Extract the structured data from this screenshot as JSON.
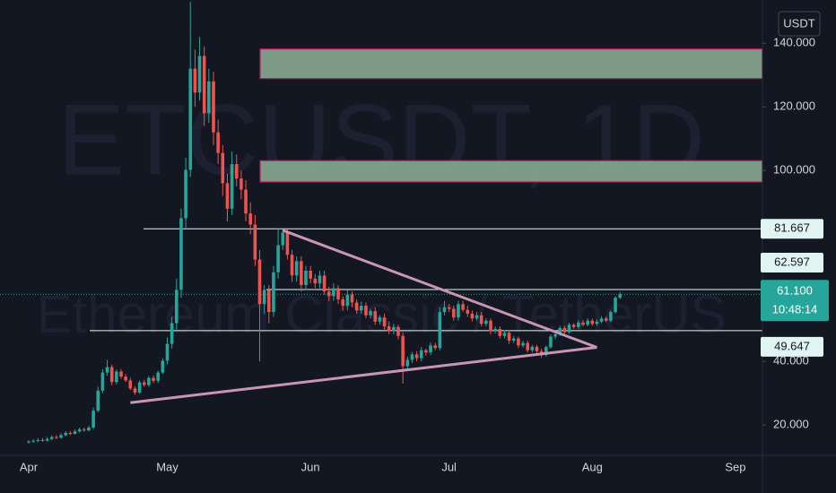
{
  "chart_data": {
    "type": "candlestick",
    "title": "ETCUSDT, 1D",
    "subtitle": "Ethereum Classic / TetherUS",
    "currency": "USDT",
    "categories": [
      "Apr",
      null,
      null,
      null,
      null,
      null,
      null,
      null,
      null,
      null,
      null,
      null,
      null,
      null,
      null,
      null,
      null,
      null,
      null,
      null,
      null,
      null,
      null,
      null,
      null,
      null,
      null,
      null,
      null,
      null,
      "May",
      null,
      null,
      null,
      null,
      null,
      null,
      null,
      null,
      null,
      null,
      null,
      null,
      null,
      null,
      null,
      null,
      null,
      null,
      null,
      null,
      null,
      null,
      null,
      null,
      null,
      null,
      null,
      null,
      null,
      null,
      "Jun",
      null,
      null,
      null,
      null,
      null,
      null,
      null,
      null,
      null,
      null,
      null,
      null,
      null,
      null,
      null,
      null,
      null,
      null,
      null,
      null,
      null,
      null,
      null,
      null,
      null,
      null,
      null,
      null,
      null,
      "Jul",
      null,
      null,
      null,
      null,
      null,
      null,
      null,
      null,
      null,
      null,
      null,
      null,
      null,
      null,
      null,
      null,
      null,
      null,
      null,
      null,
      null,
      null,
      null,
      null,
      null,
      null,
      null,
      null,
      null,
      null,
      "Aug",
      null,
      null,
      null,
      null,
      null,
      null,
      null,
      null,
      null,
      null,
      null,
      null,
      null,
      null,
      null,
      null,
      null,
      null,
      null,
      null,
      null,
      null,
      null,
      null,
      null,
      null,
      null,
      null,
      null,
      null,
      "Sep"
    ],
    "open": [
      14.5,
      14.8,
      15.0,
      15.3,
      15.1,
      15.6,
      16.2,
      16.0,
      16.8,
      17.5,
      17.2,
      18.0,
      18.6,
      18.3,
      19.2,
      24.5,
      30.8,
      36.5,
      38.2,
      33.5,
      36.8,
      35.2,
      34.0,
      31.5,
      30.2,
      33.4,
      32.6,
      34.8,
      33.9,
      36.5,
      40.2,
      45.5,
      52.0,
      62.5,
      85.0,
      100.2,
      132.0,
      124.5,
      136.0,
      118.0,
      128.0,
      112.0,
      105.5,
      96.0,
      88.0,
      102.0,
      97.5,
      94.0,
      86.5,
      83.0,
      72.0,
      58.0,
      62.5,
      55.5,
      68.0,
      76.5,
      80.5,
      73.5,
      67.0,
      71.5,
      64.0,
      68.5,
      66.0,
      64.5,
      67.0,
      62.0,
      60.5,
      63.0,
      59.5,
      57.5,
      61.0,
      58.5,
      56.0,
      57.5,
      54.5,
      55.8,
      52.5,
      53.8,
      51.0,
      49.5,
      50.8,
      48.0,
      38.5,
      40.5,
      42.2,
      41.0,
      43.5,
      42.8,
      45.0,
      44.2,
      55.5,
      57.0,
      56.5,
      53.8,
      58.0,
      56.2,
      55.0,
      53.5,
      54.5,
      51.8,
      52.8,
      49.5,
      50.2,
      48.0,
      49.0,
      46.5,
      47.2,
      45.0,
      45.8,
      43.5,
      44.6,
      43.2,
      42.0,
      44.5,
      47.8,
      48.5,
      50.5,
      49.2,
      51.5,
      50.8,
      52.2,
      51.5,
      52.8,
      51.8,
      52.5,
      53.5,
      52.8,
      55.5,
      60.0,
      null,
      null,
      null,
      null,
      null,
      null,
      null,
      null,
      null,
      null,
      null,
      null,
      null,
      null,
      null,
      null,
      null,
      null,
      null,
      null,
      null,
      null,
      null,
      null,
      null
    ],
    "high": [
      15.3,
      15.6,
      15.9,
      15.9,
      16.2,
      16.8,
      16.8,
      17.4,
      18.1,
      18.1,
      18.6,
      19.2,
      19.2,
      19.8,
      25.5,
      32.0,
      37.5,
      40.5,
      39.0,
      37.5,
      37.6,
      36.0,
      34.8,
      32.2,
      34.0,
      34.2,
      35.4,
      35.6,
      37.1,
      41.0,
      47.5,
      54.0,
      66.0,
      88.0,
      104.0,
      153.0,
      138.0,
      142.0,
      139.0,
      132.0,
      131.0,
      116.0,
      108.0,
      99.0,
      106.0,
      105.0,
      100.0,
      97.0,
      90.0,
      86.0,
      75.0,
      64.0,
      64.0,
      70.0,
      81.7,
      82.0,
      81.5,
      75.0,
      73.0,
      73.0,
      70.0,
      70.0,
      67.5,
      68.5,
      68.5,
      63.5,
      64.5,
      64.0,
      60.5,
      62.5,
      62.0,
      59.5,
      58.8,
      58.5,
      56.5,
      57.0,
      54.5,
      55.0,
      52.5,
      51.8,
      51.5,
      49.0,
      41.5,
      43.0,
      43.2,
      44.5,
      44.0,
      46.0,
      45.8,
      57.0,
      59.0,
      58.0,
      57.5,
      59.0,
      59.0,
      57.5,
      56.0,
      55.5,
      55.5,
      53.5,
      53.5,
      51.0,
      51.0,
      49.8,
      49.8,
      48.0,
      47.8,
      46.5,
      46.5,
      45.2,
      45.2,
      44.0,
      45.0,
      48.5,
      49.0,
      51.2,
      51.2,
      52.2,
      52.0,
      53.0,
      53.0,
      53.5,
      53.5,
      53.2,
      54.2,
      54.2,
      56.0,
      60.5,
      61.8,
      null,
      null,
      null,
      null,
      null,
      null,
      null,
      null,
      null,
      null,
      null,
      null,
      null,
      null,
      null,
      null,
      null,
      null,
      null,
      null,
      null,
      null,
      null,
      null,
      null
    ],
    "low": [
      14.2,
      14.4,
      14.6,
      14.7,
      14.8,
      15.2,
      15.6,
      15.7,
      16.4,
      16.8,
      17.0,
      17.6,
      17.9,
      18.0,
      18.8,
      24.0,
      30.0,
      35.5,
      32.5,
      32.8,
      34.5,
      33.5,
      31.0,
      29.5,
      29.8,
      32.0,
      32.0,
      33.2,
      33.2,
      36.0,
      39.0,
      44.0,
      50.0,
      60.0,
      82.0,
      98.0,
      120.0,
      122.0,
      114.0,
      115.0,
      108.0,
      102.0,
      92.0,
      84.0,
      86.0,
      95.0,
      91.0,
      84.0,
      80.0,
      70.0,
      40.0,
      55.0,
      52.0,
      54.0,
      66.0,
      75.0,
      72.0,
      65.0,
      65.0,
      62.0,
      62.5,
      64.5,
      63.0,
      63.0,
      61.0,
      59.0,
      59.0,
      58.0,
      56.0,
      56.0,
      57.0,
      55.0,
      55.0,
      53.5,
      53.5,
      51.5,
      51.5,
      50.0,
      48.5,
      48.5,
      47.0,
      33.0,
      37.5,
      39.5,
      40.0,
      40.0,
      41.8,
      42.0,
      43.5,
      43.5,
      54.5,
      55.5,
      52.8,
      52.8,
      55.5,
      54.0,
      52.5,
      52.8,
      51.0,
      51.0,
      48.5,
      48.8,
      47.2,
      47.2,
      45.5,
      45.8,
      44.2,
      44.3,
      42.8,
      42.8,
      42.5,
      41.2,
      41.5,
      44.0,
      47.0,
      48.0,
      48.5,
      48.7,
      50.2,
      50.2,
      51.0,
      51.0,
      51.2,
      51.2,
      52.0,
      52.3,
      52.3,
      55.0,
      59.5,
      null,
      null,
      null,
      null,
      null,
      null,
      null,
      null,
      null,
      null,
      null,
      null,
      null,
      null,
      null,
      null,
      null,
      null,
      null,
      null,
      null,
      null,
      null,
      null,
      null
    ],
    "close": [
      14.8,
      15.0,
      15.3,
      15.1,
      15.6,
      16.2,
      16.0,
      16.8,
      17.5,
      17.2,
      18.0,
      18.6,
      18.3,
      19.2,
      24.5,
      30.8,
      36.5,
      38.2,
      33.5,
      36.8,
      35.2,
      34.0,
      31.5,
      30.2,
      33.4,
      32.6,
      34.8,
      33.9,
      36.5,
      40.2,
      45.5,
      52.0,
      62.5,
      85.0,
      100.2,
      132.0,
      124.5,
      136.0,
      118.0,
      128.0,
      112.0,
      105.5,
      96.0,
      88.0,
      102.0,
      97.5,
      94.0,
      86.5,
      83.0,
      72.0,
      58.0,
      62.5,
      55.5,
      68.0,
      76.5,
      80.5,
      73.5,
      67.0,
      71.5,
      64.0,
      68.5,
      66.0,
      64.5,
      67.0,
      62.0,
      60.5,
      63.0,
      59.5,
      57.5,
      61.0,
      58.5,
      56.0,
      57.5,
      54.5,
      55.8,
      52.5,
      53.8,
      51.0,
      49.5,
      50.8,
      48.0,
      38.5,
      40.5,
      42.2,
      41.0,
      43.5,
      42.8,
      45.0,
      44.2,
      55.5,
      57.0,
      56.5,
      53.8,
      58.0,
      56.2,
      55.0,
      53.5,
      54.5,
      51.8,
      52.8,
      49.5,
      50.2,
      48.0,
      49.0,
      46.5,
      47.2,
      45.0,
      45.8,
      43.5,
      44.6,
      43.2,
      42.0,
      44.5,
      47.8,
      48.5,
      50.5,
      49.2,
      51.5,
      50.8,
      52.2,
      51.5,
      52.8,
      51.8,
      52.5,
      53.5,
      52.8,
      55.5,
      60.0,
      61.1,
      null,
      null,
      null,
      null,
      null,
      null,
      null,
      null,
      null,
      null,
      null,
      null,
      null,
      null,
      null,
      null,
      null,
      null,
      null,
      null,
      null,
      null,
      null,
      null,
      null
    ],
    "up_color": "#26a69a",
    "down_color": "#ef5350",
    "ylim": [
      10.46,
      153.6
    ],
    "yticks": [
      {
        "value": 20,
        "label": "20.000"
      },
      {
        "value": 40,
        "label": "40.000"
      },
      {
        "value": 100,
        "label": "100.000"
      },
      {
        "value": 120,
        "label": "120.000"
      },
      {
        "value": 140,
        "label": "140.000"
      }
    ],
    "price_lines": [
      {
        "value": 81.667,
        "label": "81.667"
      },
      {
        "value": 62.597,
        "label": "62.597"
      },
      {
        "value": 49.647,
        "label": "49.647"
      }
    ],
    "last_price": {
      "value": 61.1,
      "label": "61.100"
    },
    "countdown": "10:48:14",
    "zones": [
      {
        "low": 128.9,
        "high": 138.2
      },
      {
        "low": 96.4,
        "high": 103.1
      }
    ],
    "trendlines": [
      {
        "x": [
          55,
          123
        ],
        "y": [
          81.2,
          44.4
        ]
      },
      {
        "x": [
          22,
          123
        ],
        "y": [
          27,
          44.4
        ]
      }
    ]
  }
}
